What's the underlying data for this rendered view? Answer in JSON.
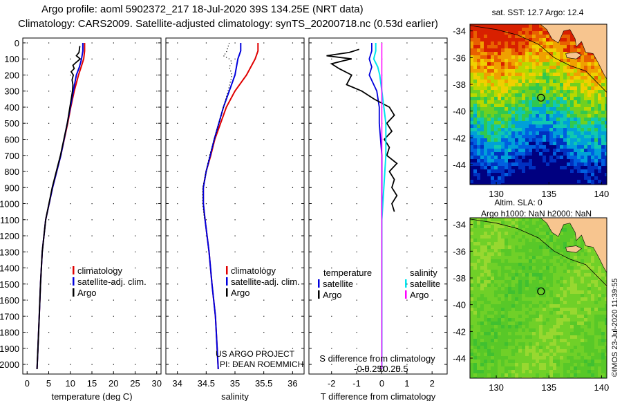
{
  "header": {
    "title_line1": "Argo profile: aoml 5902372_217 18-Jul-2020 39S 134.25E (NRT data)",
    "title_line2": "Climatology: CARS2009. Satellite-adjusted climatology: synTS_20200718.nc (0.53d earlier)"
  },
  "colors": {
    "climatology": "#e00000",
    "satellite": "#0000dd",
    "argo": "#000000",
    "satellite_salinity": "#00e5ee",
    "argo_salinity": "#ff00ff"
  },
  "chart_data": [
    {
      "type": "line",
      "id": "temperature",
      "xlabel": "temperature (deg C)",
      "xlim": [
        -1,
        31
      ],
      "xticks": [
        0,
        5,
        10,
        15,
        20,
        25,
        30
      ],
      "ylim": [
        0,
        2050
      ],
      "yticks": [
        0,
        100,
        200,
        300,
        400,
        500,
        600,
        700,
        800,
        900,
        1000,
        1100,
        1200,
        1300,
        1400,
        1500,
        1600,
        1700,
        1800,
        1900,
        2000
      ],
      "legend": [
        "climatology",
        "satellite-adj. clim.",
        "Argo"
      ],
      "legend_position": "lower-right",
      "series": [
        {
          "name": "climatology",
          "depth": [
            0,
            50,
            100,
            150,
            200,
            300,
            400,
            500,
            700,
            900,
            1100,
            1300,
            1500,
            1700,
            1900,
            2030
          ],
          "values": [
            13.3,
            13.3,
            13.1,
            12.5,
            11.9,
            10.9,
            10.1,
            9.4,
            7.8,
            5.9,
            4.3,
            3.5,
            3.1,
            2.8,
            2.5,
            2.3
          ]
        },
        {
          "name": "satellite-adj. clim.",
          "depth": [
            0,
            50,
            100,
            150,
            200,
            300,
            400,
            500,
            700,
            900,
            1100,
            1300,
            1500,
            1700,
            1900,
            2030
          ],
          "values": [
            12.9,
            12.9,
            12.6,
            12.1,
            11.4,
            10.7,
            10.0,
            9.3,
            7.8,
            5.9,
            4.3,
            3.5,
            3.1,
            2.8,
            2.5,
            2.3
          ]
        },
        {
          "name": "Argo",
          "depth": [
            20,
            60,
            80,
            100,
            120,
            140,
            160,
            180,
            200,
            230,
            260,
            300,
            350,
            400,
            500,
            700,
            900,
            1100,
            1300,
            1500,
            1700,
            1900,
            2030
          ],
          "values": [
            12.2,
            12.0,
            11.4,
            12.3,
            11.4,
            10.6,
            10.9,
            10.2,
            10.7,
            10.4,
            10.6,
            10.5,
            10.2,
            9.9,
            9.3,
            7.7,
            5.8,
            4.3,
            3.5,
            3.1,
            2.8,
            2.5,
            2.3
          ]
        }
      ]
    },
    {
      "type": "line",
      "id": "salinity",
      "xlabel": "salinity",
      "xlim": [
        33.8,
        36.2
      ],
      "xticks": [
        34,
        34.5,
        35,
        35.5,
        36
      ],
      "ylim": [
        0,
        2050
      ],
      "legend": [
        "climatology",
        "satellite-adj. clim.",
        "Argo"
      ],
      "legend_position": "lower-right",
      "annotation": [
        "US ARGO PROJECT",
        "PI: DEAN ROEMMICH"
      ],
      "series": [
        {
          "name": "climatology",
          "depth": [
            0,
            50,
            100,
            200,
            300,
            400,
            500,
            600,
            700,
            800,
            900,
            1000,
            1100,
            1300,
            1500,
            1700,
            1900,
            2030
          ],
          "values": [
            35.4,
            35.4,
            35.35,
            35.2,
            35.0,
            34.85,
            34.75,
            34.65,
            34.58,
            34.5,
            34.45,
            34.45,
            34.48,
            34.55,
            34.6,
            34.66,
            34.69,
            34.71
          ]
        },
        {
          "name": "satellite-adj. clim.",
          "depth": [
            0,
            50,
            100,
            200,
            300,
            400,
            500,
            600,
            700,
            800,
            900,
            1000,
            1100,
            1300,
            1500,
            1700,
            1900,
            2030
          ],
          "values": [
            35.1,
            35.1,
            35.05,
            35.0,
            34.9,
            34.8,
            34.72,
            34.64,
            34.57,
            34.5,
            34.45,
            34.45,
            34.48,
            34.55,
            34.6,
            34.66,
            34.69,
            34.71
          ]
        },
        {
          "name": "Argo",
          "depth": [
            0,
            60,
            80,
            100,
            120,
            150,
            200,
            300,
            400,
            500,
            700,
            900,
            1000,
            1100
          ],
          "values": [
            34.9,
            34.85,
            34.8,
            34.9,
            34.95,
            34.9,
            34.95,
            34.88,
            34.8,
            34.72,
            34.56,
            34.44,
            34.44,
            34.47
          ]
        }
      ]
    },
    {
      "type": "line",
      "id": "difference",
      "xlabel": "T difference from climatology",
      "xlabel2": "S difference from climatology",
      "xlim": [
        -2.9,
        2.6
      ],
      "xticks": [
        -2,
        -1,
        0,
        1,
        2
      ],
      "xticks2": [
        -0.5,
        -0.25,
        0,
        0.25,
        0.5
      ],
      "ylim": [
        0,
        2050
      ],
      "legend_left_title": "temperature",
      "legend_right_title": "salinity",
      "legend_left": [
        "satellite",
        "Argo"
      ],
      "legend_right": [
        "satellite",
        "Argo"
      ],
      "series": [
        {
          "name": "T satellite",
          "depth": [
            0,
            50,
            100,
            150,
            200,
            300,
            400,
            500,
            700,
            900,
            1100,
            1300,
            1500,
            1700,
            1900,
            2030
          ],
          "values": [
            -0.4,
            -0.4,
            -0.5,
            -0.4,
            -0.5,
            -0.2,
            -0.1,
            -0.1,
            0,
            0,
            0,
            0,
            0,
            0,
            0,
            0
          ]
        },
        {
          "name": "T Argo",
          "depth": [
            40,
            60,
            80,
            100,
            110,
            130,
            160,
            200,
            260,
            300,
            350,
            400,
            450,
            500,
            550,
            600,
            650,
            700,
            750,
            800,
            850,
            900,
            950,
            1000,
            1050
          ],
          "values": [
            -0.9,
            -1.3,
            -2.2,
            -1.2,
            -1.5,
            -2.0,
            -1.7,
            -1.2,
            -1.4,
            -0.8,
            -0.3,
            0.3,
            0.5,
            0.2,
            0.4,
            0.1,
            0.3,
            0.2,
            0.6,
            0.3,
            0.5,
            0.4,
            0.6,
            0.4,
            0.5
          ]
        },
        {
          "name": "S satellite",
          "depth": [
            0,
            50,
            100,
            150,
            200,
            300,
            400,
            500,
            700,
            900,
            1100,
            1300,
            1500,
            1700,
            1900,
            2030
          ],
          "values": [
            -0.15,
            -0.15,
            -0.2,
            -0.1,
            -0.05,
            0,
            0.05,
            0.1,
            0.1,
            0.05,
            0,
            0,
            0,
            0,
            0,
            0
          ]
        },
        {
          "name": "S Argo",
          "depth": [
            0,
            2030
          ],
          "values": [
            0,
            0
          ]
        }
      ]
    },
    {
      "type": "heatmap",
      "id": "sst-map",
      "title": "sat. SST: 12.7 Argo: 12.4",
      "xlim": [
        127.5,
        140.5
      ],
      "ylim": [
        -45.5,
        -33.5
      ],
      "xticks": [
        130,
        135,
        140
      ],
      "yticks": [
        -34,
        -36,
        -38,
        -40,
        -42,
        -44
      ],
      "argo_position": {
        "lon": 134.25,
        "lat": -39
      }
    },
    {
      "type": "heatmap",
      "id": "sla-map",
      "title": "Altim. SLA: 0",
      "subtitle": "Argo h1000: NaN h2000: NaN",
      "xlim": [
        127.5,
        140.5
      ],
      "ylim": [
        -45.5,
        -33.5
      ],
      "xticks": [
        130,
        135,
        140
      ],
      "yticks": [
        -34,
        -36,
        -38,
        -40,
        -42,
        -44
      ],
      "argo_position": {
        "lon": 134.25,
        "lat": -39
      },
      "credit": "©IMOS 23-Jul-2020 11:39:55"
    }
  ]
}
